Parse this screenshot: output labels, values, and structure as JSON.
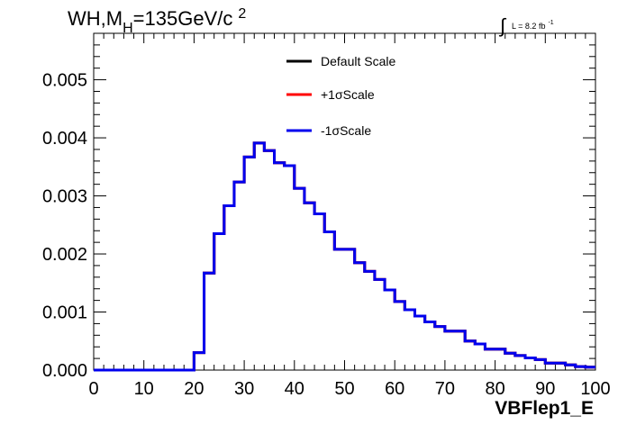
{
  "chart_data": {
    "type": "step-histogram",
    "title": "WH,M",
    "title_sub": "H",
    "title_rest": "=135GeV/c",
    "title_sup": "2",
    "annotation": {
      "integral_symbol": "∫",
      "text": "L = 8.2 fb",
      "sup": "-1"
    },
    "xlabel": "VBFlep1_E",
    "ylabel": "",
    "xlim": [
      0,
      100
    ],
    "ylim": [
      0,
      0.0058
    ],
    "x_ticks": [
      "0",
      "10",
      "20",
      "30",
      "40",
      "50",
      "60",
      "70",
      "80",
      "90",
      "100"
    ],
    "y_ticks": [
      "0.000",
      "0.001",
      "0.002",
      "0.003",
      "0.004",
      "0.005"
    ],
    "grid": false,
    "legend_position": "top-center",
    "bin_width": 2,
    "bin_edges_start": 0,
    "series": [
      {
        "name": "Default Scale",
        "color": "#000000",
        "values": [
          0,
          0,
          0,
          0,
          0,
          0,
          0,
          0,
          0,
          0,
          0.0003,
          0.00167,
          0.00235,
          0.00283,
          0.00324,
          0.00367,
          0.00391,
          0.00378,
          0.00357,
          0.00352,
          0.00313,
          0.00288,
          0.00269,
          0.00238,
          0.00208,
          0.00208,
          0.00185,
          0.0017,
          0.00156,
          0.00138,
          0.00118,
          0.00104,
          0.00093,
          0.00083,
          0.00075,
          0.00067,
          0.00067,
          0.0005,
          0.00045,
          0.00036,
          0.00036,
          0.00029,
          0.00025,
          0.00021,
          0.00018,
          0.00012,
          0.00012,
          9e-05,
          6e-05,
          5e-05
        ]
      },
      {
        "name": "+1σScale",
        "color": "#ff0000",
        "values": [
          0,
          0,
          0,
          0,
          0,
          0,
          0,
          0,
          0,
          0,
          0.0003,
          0.00167,
          0.00235,
          0.00283,
          0.00324,
          0.00367,
          0.00391,
          0.00378,
          0.00357,
          0.00352,
          0.00313,
          0.00288,
          0.00269,
          0.00238,
          0.00208,
          0.00208,
          0.00185,
          0.0017,
          0.00156,
          0.00138,
          0.00118,
          0.00104,
          0.00093,
          0.00083,
          0.00075,
          0.00067,
          0.00067,
          0.0005,
          0.00045,
          0.00036,
          0.00036,
          0.00029,
          0.00025,
          0.00021,
          0.00018,
          0.00012,
          0.00012,
          9e-05,
          6e-05,
          5e-05
        ]
      },
      {
        "name": "-1σScale",
        "color": "#0000ee",
        "values": [
          0,
          0,
          0,
          0,
          0,
          0,
          0,
          0,
          0,
          0,
          0.0003,
          0.00167,
          0.00235,
          0.00283,
          0.00324,
          0.00367,
          0.00391,
          0.00378,
          0.00357,
          0.00352,
          0.00313,
          0.00288,
          0.00269,
          0.00238,
          0.00208,
          0.00208,
          0.00185,
          0.0017,
          0.00156,
          0.00138,
          0.00118,
          0.00104,
          0.00093,
          0.00083,
          0.00075,
          0.00067,
          0.00067,
          0.0005,
          0.00045,
          0.00036,
          0.00036,
          0.00029,
          0.00025,
          0.00021,
          0.00018,
          0.00012,
          0.00012,
          9e-05,
          6e-05,
          5e-05
        ]
      }
    ]
  }
}
